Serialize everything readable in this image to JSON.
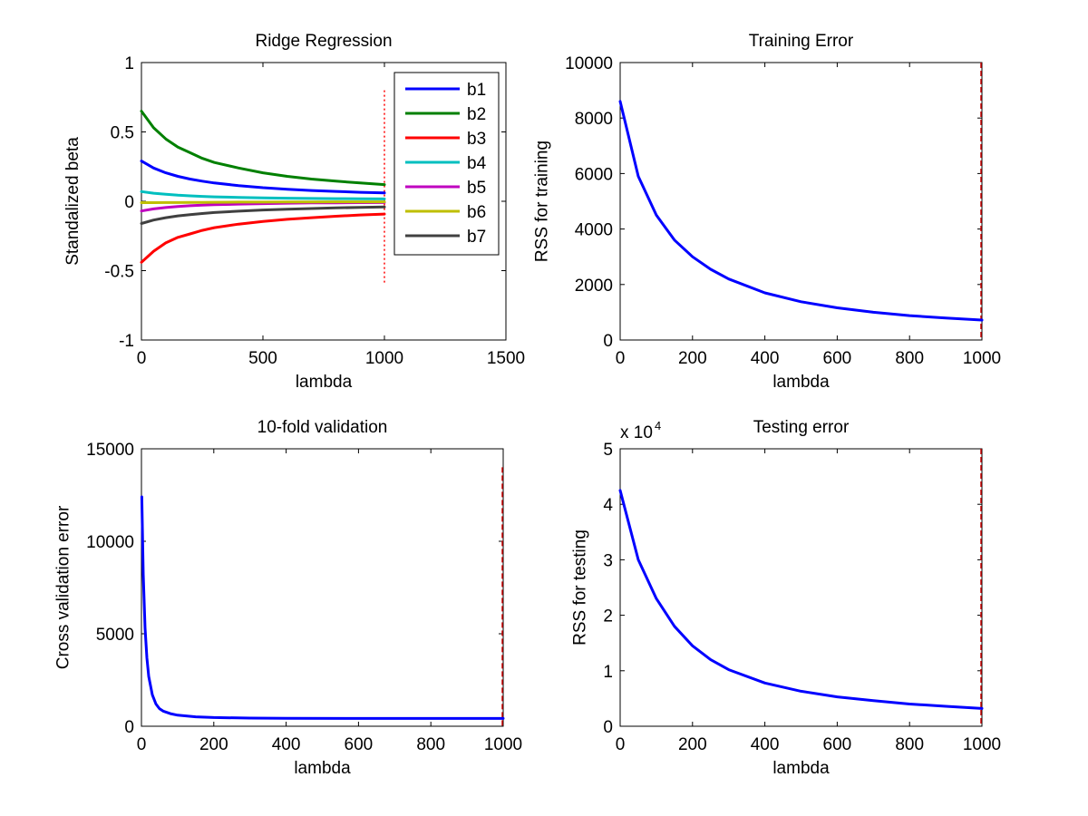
{
  "chart_data": [
    {
      "type": "line",
      "title": "Ridge Regression",
      "xlabel": "lambda",
      "ylabel": "Standalized beta",
      "xlim": [
        0,
        1500
      ],
      "ylim": [
        -1,
        1
      ],
      "xticks": [
        0,
        500,
        1000,
        1500
      ],
      "yticks": [
        -1,
        -0.5,
        0,
        0.5,
        1
      ],
      "xtick_labels": [
        "0",
        "500",
        "1000",
        "1500"
      ],
      "ytick_labels": [
        "-1",
        "-0.5",
        "0",
        "0.5",
        "1"
      ],
      "x": [
        0,
        50,
        100,
        150,
        200,
        250,
        300,
        400,
        500,
        600,
        700,
        800,
        900,
        1000
      ],
      "series": [
        {
          "name": "b1",
          "color": "#0000ff",
          "values": [
            0.29,
            0.24,
            0.205,
            0.18,
            0.16,
            0.145,
            0.132,
            0.113,
            0.098,
            0.087,
            0.078,
            0.071,
            0.065,
            0.06
          ]
        },
        {
          "name": "b2",
          "color": "#008000",
          "values": [
            0.65,
            0.53,
            0.45,
            0.39,
            0.35,
            0.31,
            0.28,
            0.24,
            0.205,
            0.18,
            0.16,
            0.145,
            0.132,
            0.12
          ]
        },
        {
          "name": "b3",
          "color": "#ff0000",
          "values": [
            -0.44,
            -0.36,
            -0.3,
            -0.26,
            -0.235,
            -0.21,
            -0.19,
            -0.165,
            -0.145,
            -0.13,
            -0.118,
            -0.108,
            -0.099,
            -0.092
          ]
        },
        {
          "name": "b4",
          "color": "#00bfbf",
          "values": [
            0.07,
            0.058,
            0.05,
            0.044,
            0.039,
            0.035,
            0.032,
            0.028,
            0.025,
            0.022,
            0.02,
            0.019,
            0.018,
            0.017
          ]
        },
        {
          "name": "b5",
          "color": "#bf00bf",
          "values": [
            -0.07,
            -0.055,
            -0.045,
            -0.037,
            -0.032,
            -0.028,
            -0.025,
            -0.02,
            -0.017,
            -0.014,
            -0.012,
            -0.011,
            -0.01,
            -0.009
          ]
        },
        {
          "name": "b6",
          "color": "#bfbf00",
          "values": [
            -0.01,
            -0.01,
            -0.009,
            -0.009,
            -0.008,
            -0.008,
            -0.007,
            -0.006,
            -0.006,
            -0.005,
            -0.005,
            -0.004,
            -0.004,
            -0.004
          ]
        },
        {
          "name": "b7",
          "color": "#404040",
          "values": [
            -0.16,
            -0.135,
            -0.118,
            -0.105,
            -0.096,
            -0.088,
            -0.081,
            -0.071,
            -0.063,
            -0.057,
            -0.052,
            -0.048,
            -0.044,
            -0.041
          ]
        }
      ],
      "vline": {
        "x": 1000,
        "y_range": [
          -0.6,
          0.8
        ],
        "color": "#ff0000",
        "style": "dotted"
      },
      "legend": "top-right",
      "grid": false
    },
    {
      "type": "line",
      "title": "Training Error",
      "xlabel": "lambda",
      "ylabel": "RSS for training",
      "xlim": [
        0,
        1000
      ],
      "ylim": [
        0,
        10000
      ],
      "xticks": [
        0,
        200,
        400,
        600,
        800,
        1000
      ],
      "yticks": [
        0,
        2000,
        4000,
        6000,
        8000,
        10000
      ],
      "xtick_labels": [
        "0",
        "200",
        "400",
        "600",
        "800",
        "1000"
      ],
      "ytick_labels": [
        "0",
        "2000",
        "4000",
        "6000",
        "8000",
        "10000"
      ],
      "x": [
        0,
        50,
        100,
        150,
        200,
        250,
        300,
        400,
        500,
        600,
        700,
        800,
        900,
        1000
      ],
      "series": [
        {
          "color": "#0000ff",
          "values": [
            8600,
            5900,
            4500,
            3600,
            3000,
            2550,
            2200,
            1700,
            1380,
            1160,
            1000,
            880,
            790,
            720
          ]
        }
      ],
      "vline": {
        "x": 1000,
        "y_range": [
          0,
          10000
        ],
        "color": "#cc0000",
        "style": "dashed"
      },
      "grid": false
    },
    {
      "type": "line",
      "title": "10-fold validation",
      "xlabel": "lambda",
      "ylabel": "Cross validation error",
      "xlim": [
        0,
        1000
      ],
      "ylim": [
        0,
        15000
      ],
      "xticks": [
        0,
        200,
        400,
        600,
        800,
        1000
      ],
      "yticks": [
        0,
        5000,
        10000,
        15000
      ],
      "xtick_labels": [
        "0",
        "200",
        "400",
        "600",
        "800",
        "1000"
      ],
      "ytick_labels": [
        "0",
        "5000",
        "10000",
        "15000"
      ],
      "x": [
        1,
        5,
        10,
        15,
        20,
        30,
        40,
        50,
        60,
        80,
        100,
        150,
        200,
        300,
        400,
        600,
        800,
        1000
      ],
      "series": [
        {
          "color": "#0000ff",
          "values": [
            12400,
            8200,
            5300,
            3700,
            2700,
            1700,
            1200,
            950,
            820,
            680,
            600,
            510,
            470,
            440,
            430,
            420,
            420,
            420
          ]
        }
      ],
      "vline": {
        "x": 1000,
        "y_range": [
          0,
          14000
        ],
        "color": "#cc0000",
        "style": "dashed"
      },
      "grid": false
    },
    {
      "type": "line",
      "title": "Testing error",
      "xlabel": "lambda",
      "ylabel": "RSS for testing",
      "y_multiplier": "x 10",
      "y_multiplier_exp": "4",
      "xlim": [
        0,
        1000
      ],
      "ylim": [
        0,
        5
      ],
      "xticks": [
        0,
        200,
        400,
        600,
        800,
        1000
      ],
      "yticks": [
        0,
        1,
        2,
        3,
        4,
        5
      ],
      "xtick_labels": [
        "0",
        "200",
        "400",
        "600",
        "800",
        "1000"
      ],
      "ytick_labels": [
        "0",
        "1",
        "2",
        "3",
        "4",
        "5"
      ],
      "x": [
        0,
        50,
        100,
        150,
        200,
        250,
        300,
        400,
        500,
        600,
        700,
        800,
        900,
        1000
      ],
      "series": [
        {
          "color": "#0000ff",
          "values": [
            4.25,
            3.0,
            2.3,
            1.8,
            1.45,
            1.2,
            1.02,
            0.78,
            0.63,
            0.53,
            0.46,
            0.4,
            0.36,
            0.32
          ]
        }
      ],
      "vline": {
        "x": 1000,
        "y_range": [
          0,
          5
        ],
        "color": "#cc0000",
        "style": "dashed"
      },
      "grid": false
    }
  ]
}
